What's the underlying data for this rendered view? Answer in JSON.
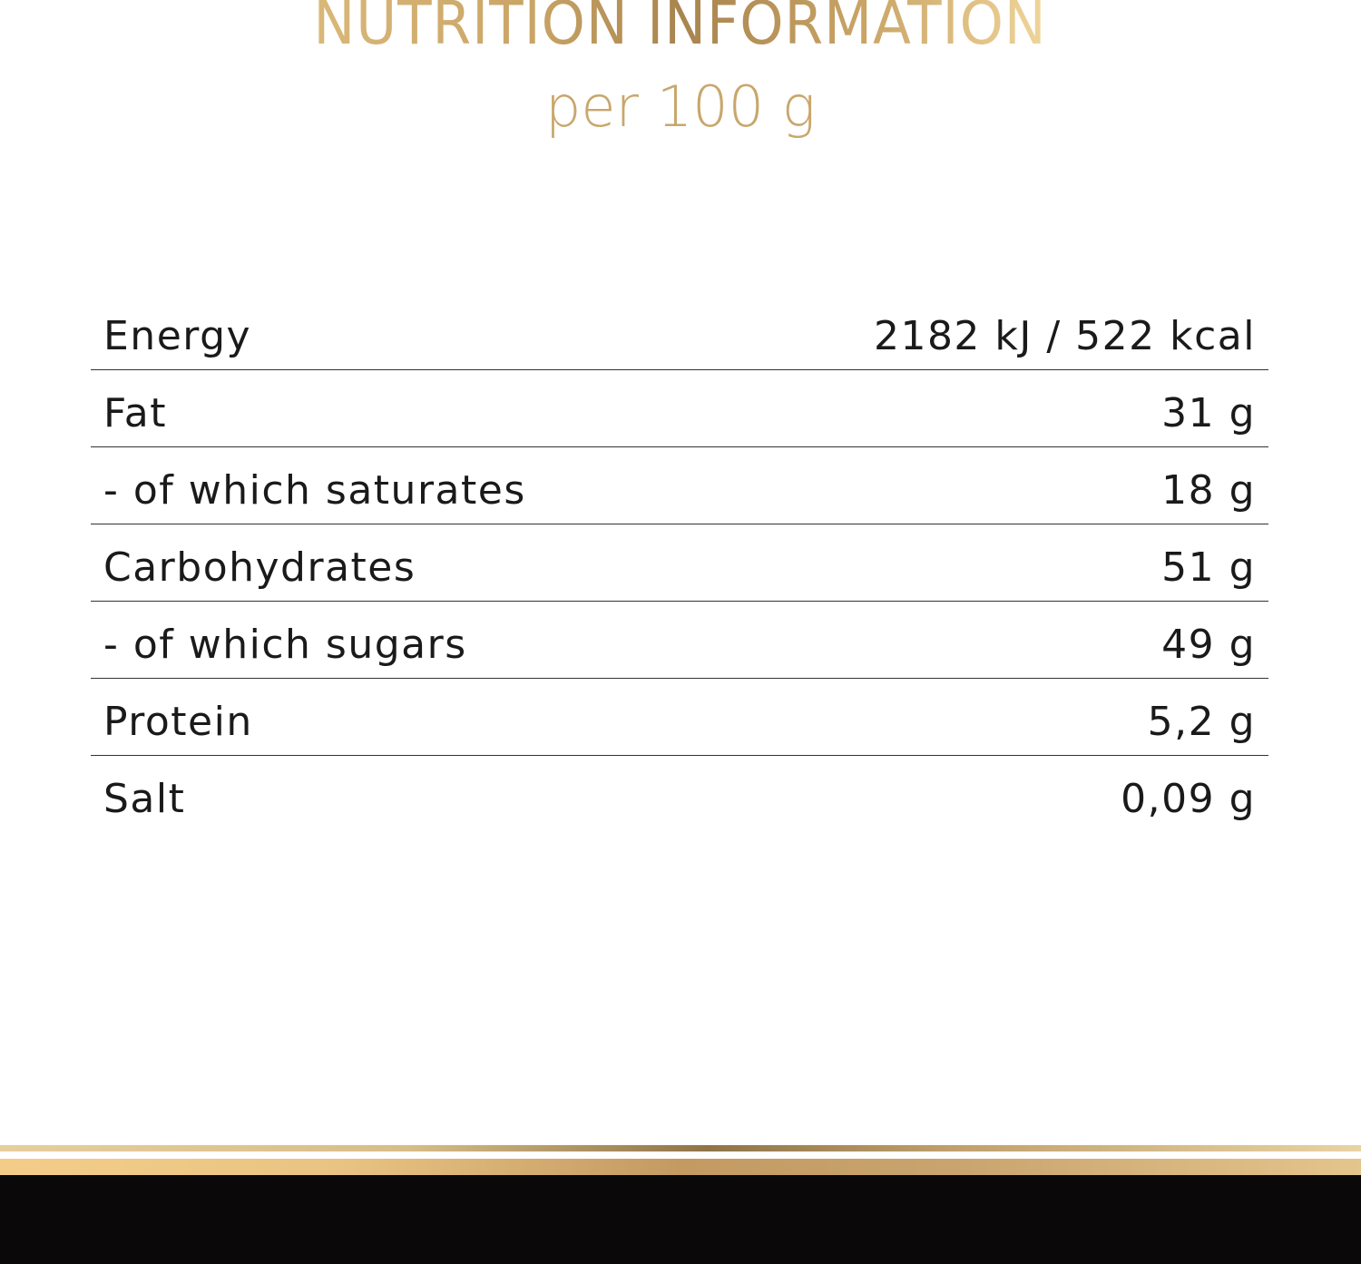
{
  "header": {
    "title": "NUTRITION INFORMATION",
    "subtitle": "per 100 g"
  },
  "colors": {
    "gold": "#c8a76c",
    "text": "#1a1a1a",
    "footer": "#0a0809"
  },
  "nutrition": {
    "rows": [
      {
        "label": "Energy",
        "value": "2182 kJ / 522 kcal"
      },
      {
        "label": "Fat",
        "value": "31 g"
      },
      {
        "label": "- of which saturates",
        "value": "18 g"
      },
      {
        "label": "Carbohydrates",
        "value": "51 g"
      },
      {
        "label": "- of which sugars",
        "value": "49 g"
      },
      {
        "label": "Protein",
        "value": "5,2 g"
      },
      {
        "label": "Salt",
        "value": "0,09 g"
      }
    ]
  }
}
